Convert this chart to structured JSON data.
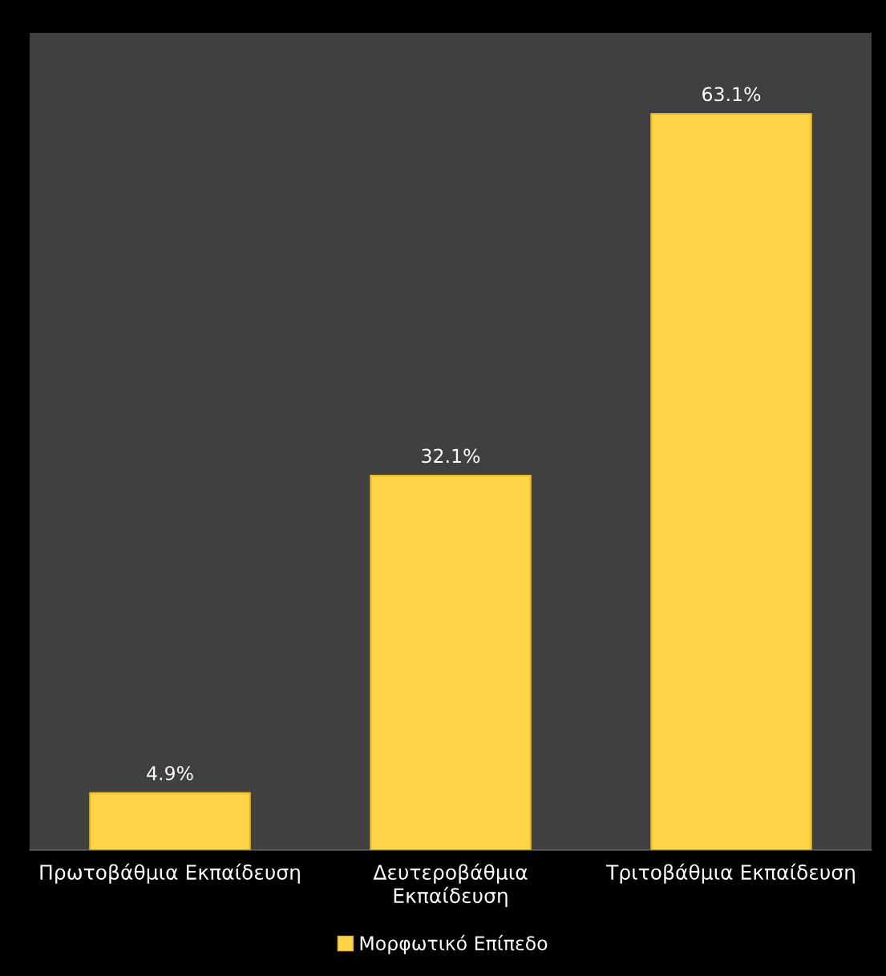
{
  "chart_data": {
    "type": "bar",
    "categories": [
      "Πρωτοβάθμια Εκπαίδευση",
      "Δευτεροβάθμια Εκπαίδευση",
      "Τριτοβάθμια Εκπαίδευση"
    ],
    "series": [
      {
        "name": "Μορφωτικό Επίπεδο",
        "color": "#fdd446",
        "values": [
          4.9,
          32.1,
          63.1
        ],
        "value_labels": [
          "4.9%",
          "32.1%",
          "63.1%"
        ]
      }
    ],
    "legend": "bottom"
  }
}
